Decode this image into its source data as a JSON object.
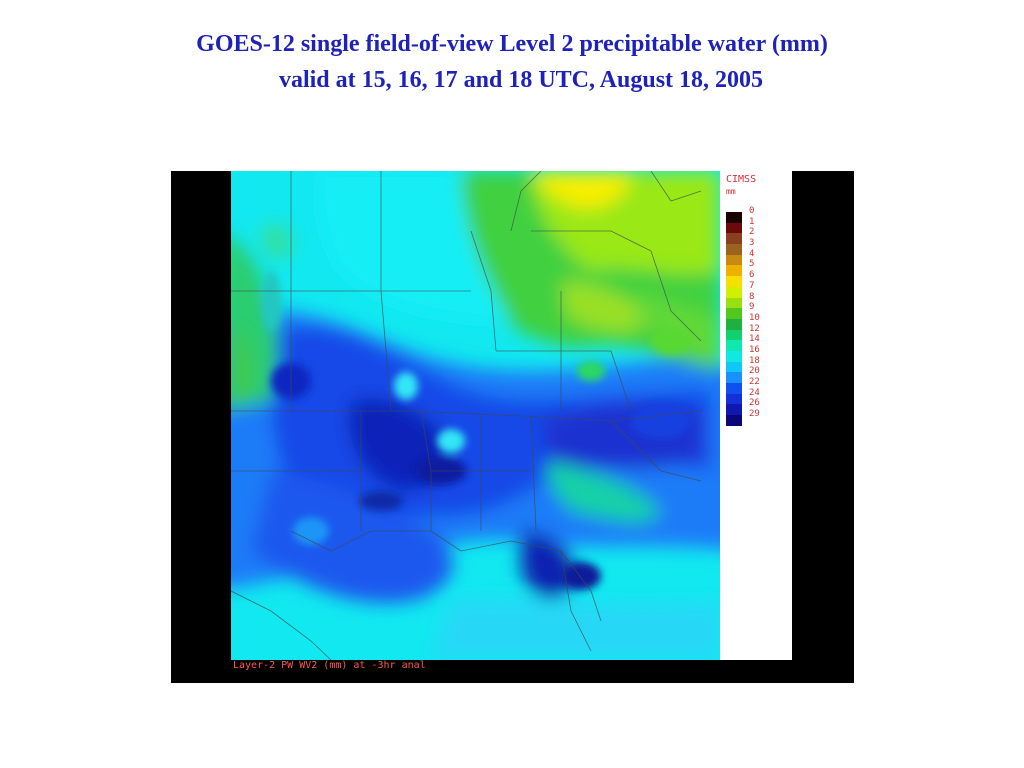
{
  "title": {
    "line1": "GOES-12 single field-of-view Level 2 precipitable water (mm)",
    "line2": "valid at 15, 16, 17 and 18 UTC, August 18, 2005"
  },
  "map": {
    "caption": "Layer-2 PW  WV2 (mm) at -3hr anal",
    "legend_title": "CIMSS",
    "legend_unit": "mm",
    "legend": [
      {
        "label": "0",
        "color": "#1a0000"
      },
      {
        "label": "1",
        "color": "#6a0a0a"
      },
      {
        "label": "2",
        "color": "#8a4020"
      },
      {
        "label": "3",
        "color": "#9a6420"
      },
      {
        "label": "4",
        "color": "#c88a10"
      },
      {
        "label": "5",
        "color": "#f0b000"
      },
      {
        "label": "6",
        "color": "#f5e000"
      },
      {
        "label": "7",
        "color": "#d0f000"
      },
      {
        "label": "8",
        "color": "#9ae010"
      },
      {
        "label": "9",
        "color": "#50c820"
      },
      {
        "label": "10",
        "color": "#20b040"
      },
      {
        "label": "12",
        "color": "#10d070"
      },
      {
        "label": "14",
        "color": "#10e8b0"
      },
      {
        "label": "16",
        "color": "#10e8e0"
      },
      {
        "label": "18",
        "color": "#10c8f8"
      },
      {
        "label": "20",
        "color": "#1890ff"
      },
      {
        "label": "22",
        "color": "#1050f0"
      },
      {
        "label": "24",
        "color": "#1430d8"
      },
      {
        "label": "26",
        "color": "#1018b0"
      },
      {
        "label": "29",
        "color": "#08087a"
      }
    ]
  }
}
